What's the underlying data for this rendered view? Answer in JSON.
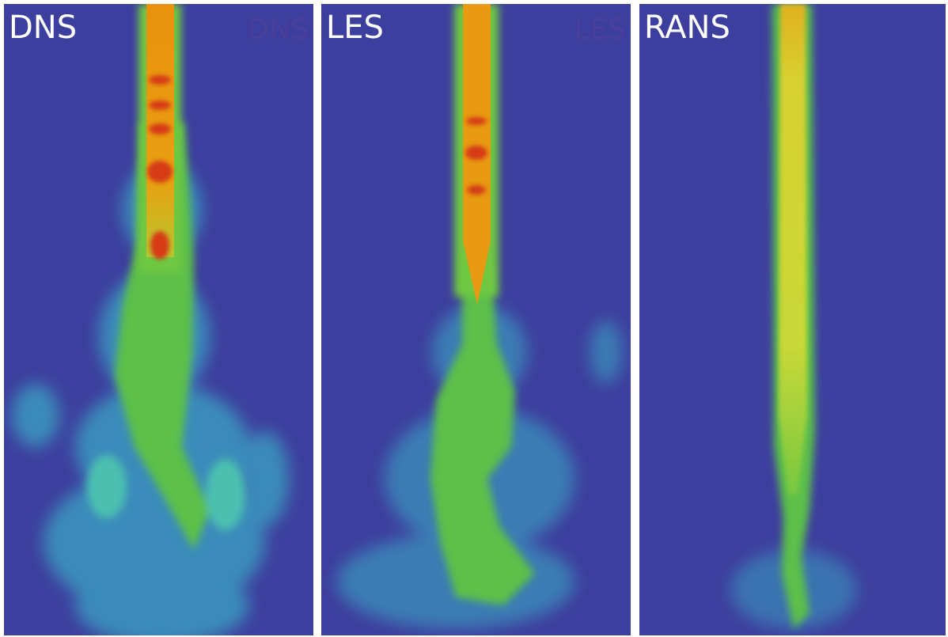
{
  "panels": [
    {
      "label": "DNS",
      "watermark": "DNS"
    },
    {
      "label": "LES",
      "watermark": "LES"
    },
    {
      "label": "RANS"
    }
  ]
}
